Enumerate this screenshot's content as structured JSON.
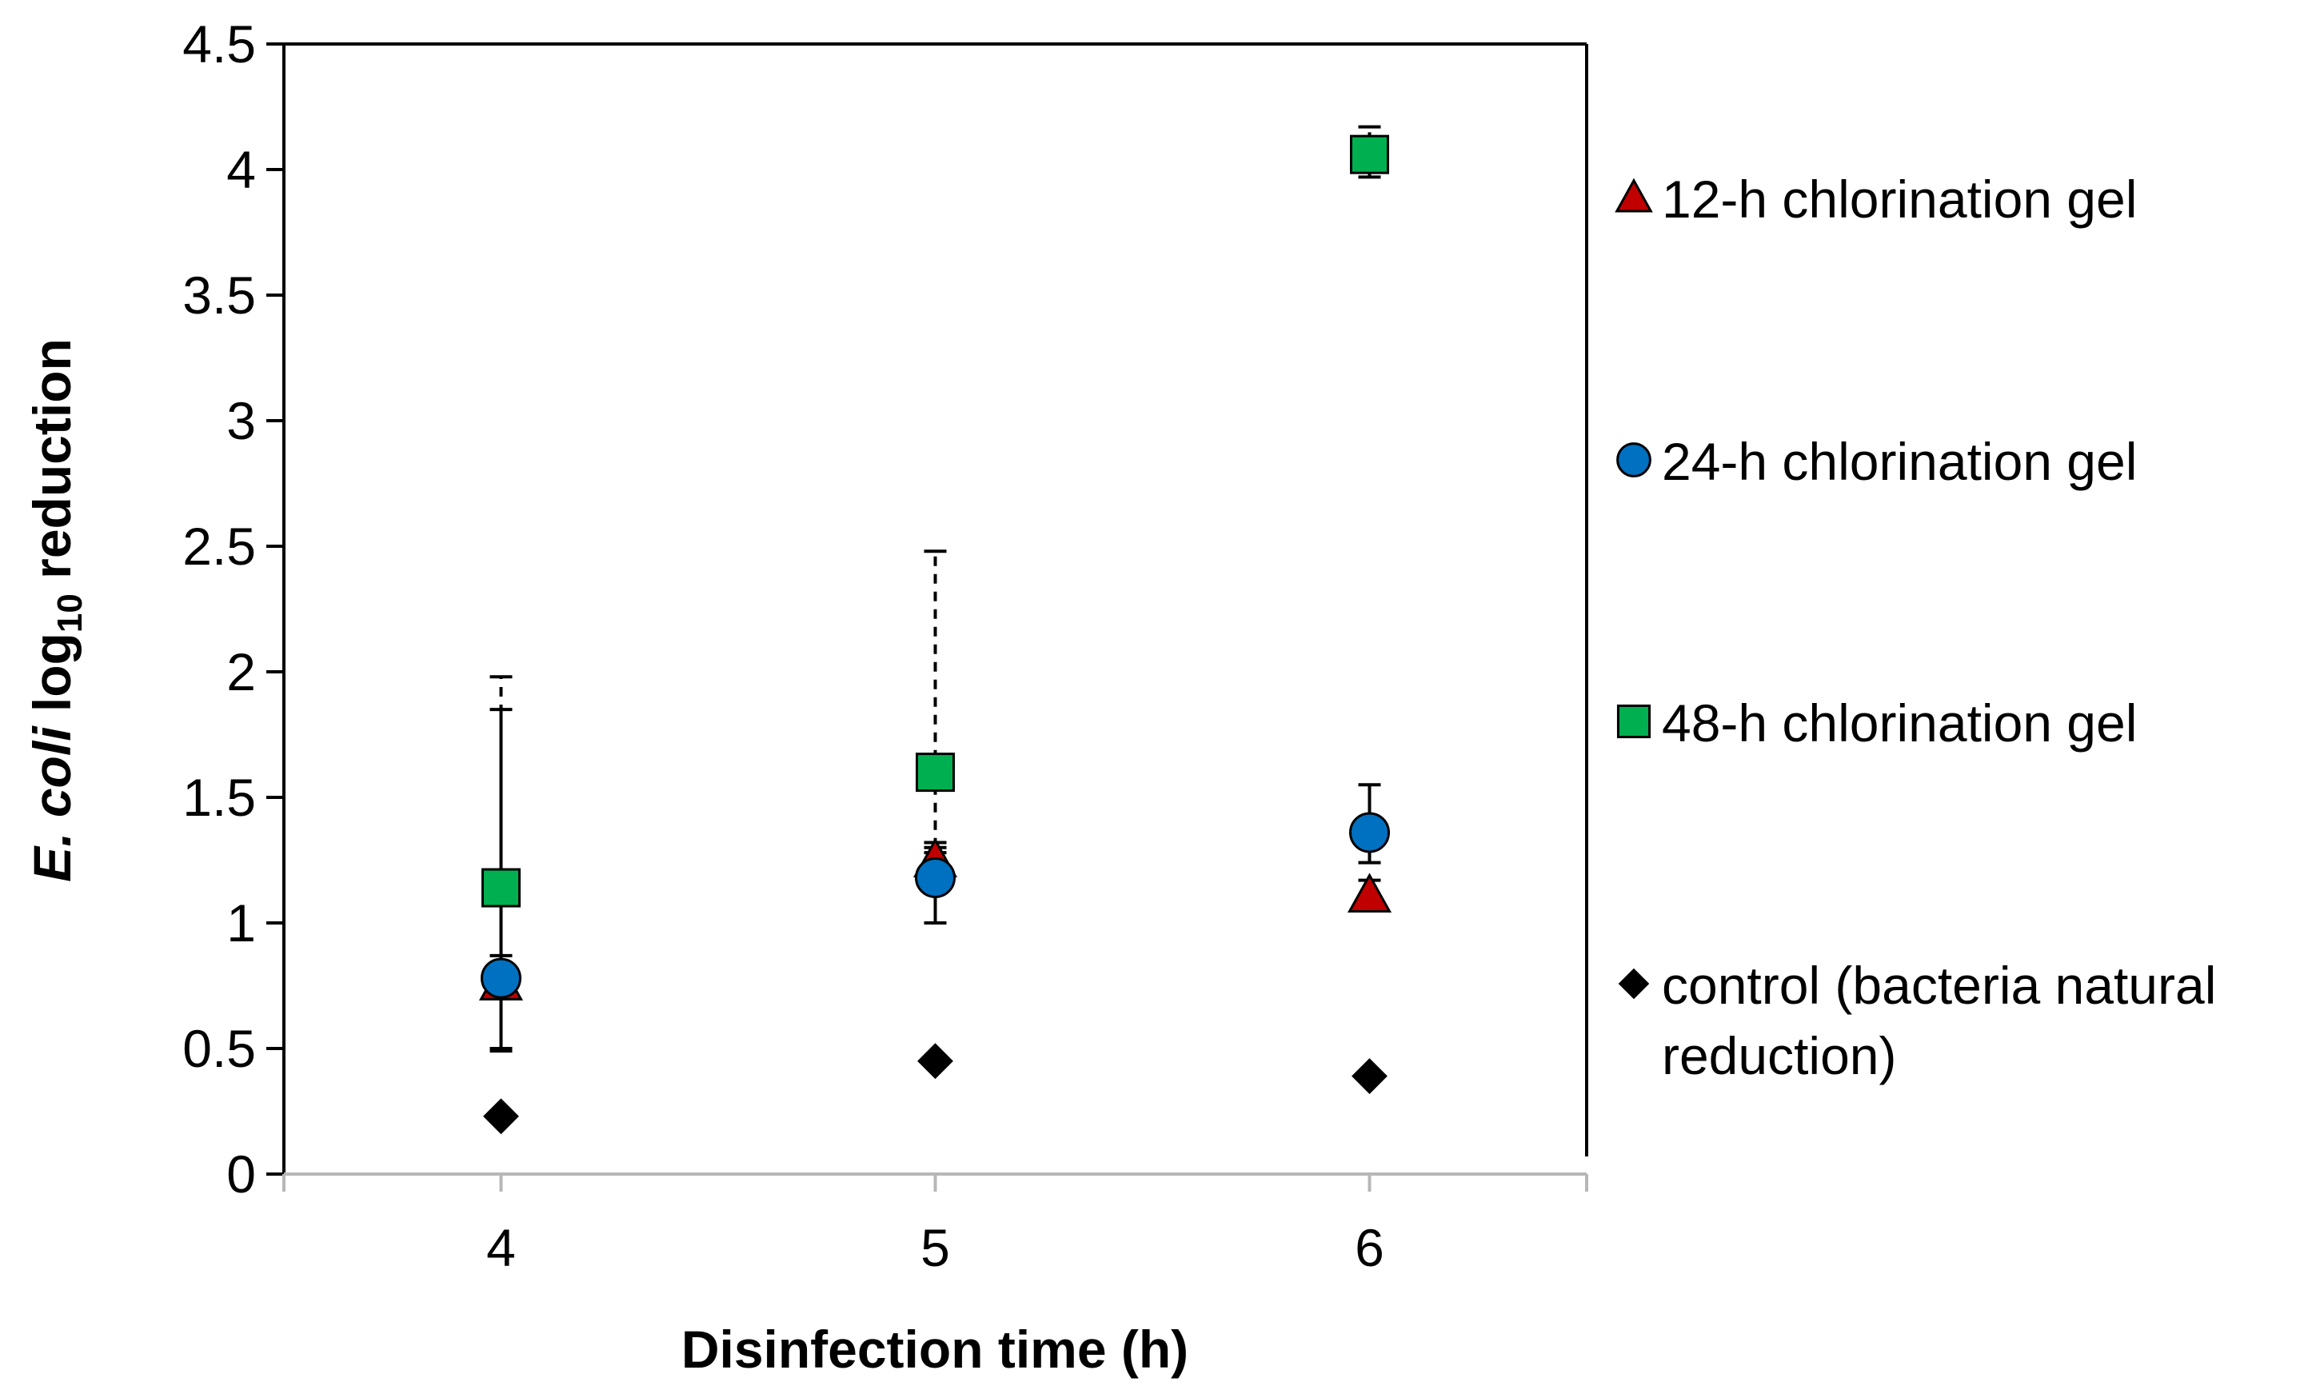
{
  "chart_data": {
    "type": "scatter",
    "title": "",
    "xlabel": "Disinfection time (h)",
    "ylabel": {
      "italic_part": "E. coli",
      "log_part": "log",
      "subscript": "10",
      "rest": "reduction"
    },
    "x": [
      4,
      5,
      6
    ],
    "x_ticks": [
      "4",
      "5",
      "6"
    ],
    "xlim": [
      3.5,
      6.5
    ],
    "ylim": [
      0,
      4.5
    ],
    "y_ticks": [
      "0",
      "0.5",
      "1",
      "1.5",
      "2",
      "2.5",
      "3",
      "3.5",
      "4",
      "4.5"
    ],
    "grid": false,
    "legend_position": "right",
    "series": [
      {
        "name": "12-h chlorination gel",
        "marker": "triangle",
        "color": "#c00000",
        "values": [
          0.76,
          1.25,
          1.11
        ],
        "err_low": [
          0.26,
          0.07,
          0.06
        ],
        "err_high": [
          1.09,
          0.07,
          0.06
        ],
        "err_style": "solid"
      },
      {
        "name": "24-h chlorination gel",
        "marker": "circle",
        "color": "#0070c0",
        "values": [
          0.78,
          1.18,
          1.36
        ],
        "err_low": [
          0.29,
          0.18,
          0.12
        ],
        "err_high": [
          0.09,
          0.1,
          0.19
        ],
        "err_style": "solid"
      },
      {
        "name": "48-h chlorination gel",
        "marker": "square",
        "color": "#00b050",
        "values": [
          1.14,
          1.6,
          4.06
        ],
        "err_low": [
          0.64,
          0.3,
          0.09
        ],
        "err_high": [
          0.84,
          0.88,
          0.11
        ],
        "err_style": "dashed"
      },
      {
        "name": "control (bacteria natural reduction)",
        "legend_lines": [
          "control (bacteria natural",
          "reduction)"
        ],
        "marker": "diamond",
        "color": "#000000",
        "values": [
          0.23,
          0.45,
          0.39
        ]
      }
    ]
  }
}
